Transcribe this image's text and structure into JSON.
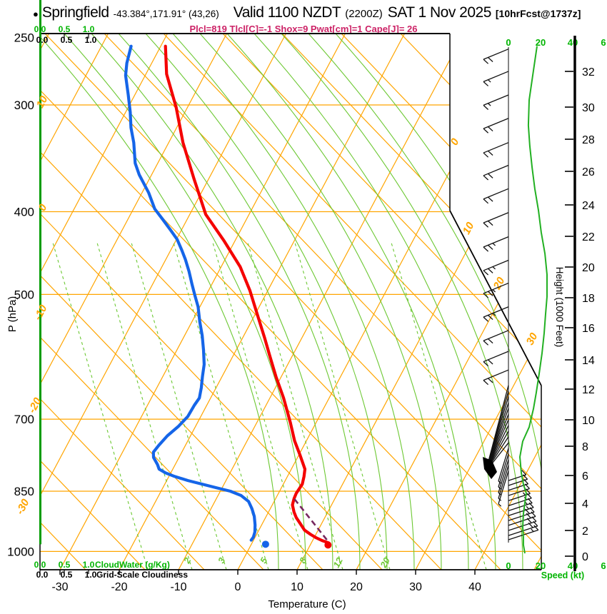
{
  "header": {
    "bullet": "●",
    "station": "Springfield",
    "coords": "-43.384°,171.91° (43,26)",
    "valid_main": "Valid 1100 NZDT",
    "valid_z": "(2200Z)",
    "valid_date": "SAT 1 Nov 2025",
    "forecast_tag": "[10hrFcst@1737z]",
    "indices": "Plcl=819 Tlcl[C]=-1 Shox=9 Pwat[cm]=1 Cape[J]= 26"
  },
  "axes": {
    "pressure_axis_title": "P (hPa)",
    "pressure_ticks": [
      "250",
      "300",
      "400",
      "500",
      "700",
      "850",
      "1000"
    ],
    "temp_axis_title": "Temperature (C)",
    "temp_ticks": [
      "-30",
      "-20",
      "-10",
      "0",
      "10",
      "20",
      "30",
      "40"
    ],
    "height_axis_title": "Height (1000 Feet)",
    "height_ticks": [
      "0",
      "2",
      "4",
      "6",
      "8",
      "10",
      "12",
      "14",
      "16",
      "18",
      "20",
      "22",
      "24",
      "26",
      "28",
      "30",
      "32"
    ],
    "speed_axis_title": "Speed (kt)",
    "speed_ticks": [
      "0",
      "20",
      "40",
      "6"
    ],
    "cloudwater_axis_title": "CloudWater (g/Kg)",
    "cloudwater_ticks": [
      "0.0",
      "0.5",
      "1.0"
    ],
    "cloudiness_axis_title": "Grid-Scale Cloudiness",
    "cloudiness_ticks": [
      "0.0",
      "0.5",
      "1.0"
    ],
    "isotherm_labels_left": [
      "10",
      "0",
      "-10",
      "-20",
      "-30"
    ],
    "isotherm_labels_right": [
      "0",
      "10",
      "20",
      "30"
    ],
    "mixing_ratio_labels": [
      "2",
      "3",
      "5",
      "8",
      "12",
      "20"
    ]
  },
  "chart_data": {
    "type": "line",
    "subtype": "skewt-log-p-sounding",
    "title": "Springfield sounding, valid 1100 NZDT SAT 1 Nov 2025",
    "pressure_range_hpa": [
      1050,
      250
    ],
    "temp_axis_range_c": [
      -30,
      40
    ],
    "height_axis_range_kft": [
      0,
      32
    ],
    "speed_axis_range_kt": [
      0,
      60
    ],
    "temperature_profile_p_t": [
      [
        256,
        -59.2
      ],
      [
        276,
        -56.5
      ],
      [
        302,
        -51.9
      ],
      [
        332,
        -47.6
      ],
      [
        366,
        -42.5
      ],
      [
        403,
        -37.3
      ],
      [
        433,
        -31.8
      ],
      [
        464,
        -26.8
      ],
      [
        495,
        -23.0
      ],
      [
        527,
        -19.7
      ],
      [
        562,
        -16.3
      ],
      [
        589,
        -13.9
      ],
      [
        624,
        -10.9
      ],
      [
        661,
        -7.7
      ],
      [
        707,
        -4.3
      ],
      [
        742,
        -2.0
      ],
      [
        771,
        0.2
      ],
      [
        801,
        2.3
      ],
      [
        817,
        2.8
      ],
      [
        834,
        3.2
      ],
      [
        855,
        3.0
      ],
      [
        867,
        3.1
      ],
      [
        882,
        3.4
      ],
      [
        899,
        4.3
      ],
      [
        913,
        5.2
      ],
      [
        929,
        6.5
      ],
      [
        944,
        7.7
      ],
      [
        955,
        9.1
      ],
      [
        964,
        10.4
      ],
      [
        971,
        11.6
      ],
      [
        977,
        12.9
      ]
    ],
    "dewpoint_profile_p_t": [
      [
        256,
        -65.0
      ],
      [
        268,
        -64.2
      ],
      [
        277,
        -63.3
      ],
      [
        292,
        -61.1
      ],
      [
        306,
        -59.2
      ],
      [
        319,
        -57.7
      ],
      [
        332,
        -55.9
      ],
      [
        351,
        -53.8
      ],
      [
        362,
        -52.1
      ],
      [
        380,
        -48.9
      ],
      [
        397,
        -46.4
      ],
      [
        408,
        -44.2
      ],
      [
        420,
        -41.9
      ],
      [
        431,
        -39.9
      ],
      [
        444,
        -38.1
      ],
      [
        455,
        -36.7
      ],
      [
        470,
        -35.0
      ],
      [
        487,
        -33.3
      ],
      [
        501,
        -31.9
      ],
      [
        517,
        -30.3
      ],
      [
        538,
        -28.7
      ],
      [
        559,
        -27.0
      ],
      [
        581,
        -25.5
      ],
      [
        604,
        -24.1
      ],
      [
        624,
        -23.3
      ],
      [
        643,
        -22.5
      ],
      [
        661,
        -21.9
      ],
      [
        674,
        -22.1
      ],
      [
        695,
        -22.2
      ],
      [
        714,
        -22.9
      ],
      [
        732,
        -23.9
      ],
      [
        751,
        -24.5
      ],
      [
        765,
        -24.8
      ],
      [
        776,
        -24.3
      ],
      [
        791,
        -23.0
      ],
      [
        801,
        -22.3
      ],
      [
        809,
        -20.9
      ],
      [
        817,
        -19.0
      ],
      [
        826,
        -16.4
      ],
      [
        834,
        -13.7
      ],
      [
        842,
        -11.0
      ],
      [
        850,
        -8.3
      ],
      [
        860,
        -6.1
      ],
      [
        874,
        -4.3
      ],
      [
        891,
        -3.1
      ],
      [
        910,
        -2.0
      ],
      [
        931,
        -1.1
      ],
      [
        949,
        -0.5
      ],
      [
        962,
        -0.3
      ],
      [
        970,
        -0.4
      ]
    ],
    "surface_temperature": {
      "p": 977,
      "t": 13.0
    },
    "surface_dewpoint": {
      "p": 977,
      "t": 2.4
    },
    "parcel_path_p_t": [
      [
        868,
        3.2
      ],
      [
        971,
        12.5
      ]
    ],
    "cloud_water_profile": [
      [
        1000,
        0.0
      ],
      [
        255,
        0.0
      ]
    ],
    "wind_speed_profile_p_kt": [
      [
        256,
        17.8
      ],
      [
        277,
        15.1
      ],
      [
        296,
        12.9
      ],
      [
        317,
        12.4
      ],
      [
        335,
        13.3
      ],
      [
        355,
        14.7
      ],
      [
        376,
        16.4
      ],
      [
        399,
        18.7
      ],
      [
        423,
        20.4
      ],
      [
        448,
        22.7
      ],
      [
        474,
        24.0
      ],
      [
        503,
        24.0
      ],
      [
        527,
        23.1
      ],
      [
        555,
        22.2
      ],
      [
        586,
        20.9
      ],
      [
        619,
        19.1
      ],
      [
        652,
        17.3
      ],
      [
        680,
        15.6
      ],
      [
        715,
        12.9
      ],
      [
        743,
        8.9
      ],
      [
        775,
        7.1
      ],
      [
        809,
        8.0
      ],
      [
        834,
        9.3
      ],
      [
        855,
        11.1
      ],
      [
        877,
        10.2
      ],
      [
        904,
        9.3
      ],
      [
        936,
        8.9
      ],
      [
        962,
        9.3
      ],
      [
        982,
        9.3
      ],
      [
        1005,
        10.2
      ]
    ],
    "wind_barbs": [
      {
        "p": 258,
        "type": "L",
        "f": 2
      },
      {
        "p": 274,
        "type": "L",
        "f": 1.5
      },
      {
        "p": 292,
        "type": "L",
        "f": 1.5
      },
      {
        "p": 311,
        "type": "L",
        "f": 2
      },
      {
        "p": 332,
        "type": "L",
        "f": 2
      },
      {
        "p": 353,
        "type": "L",
        "f": 2
      },
      {
        "p": 376,
        "type": "L",
        "f": 2
      },
      {
        "p": 401,
        "type": "L",
        "f": 2
      },
      {
        "p": 428,
        "type": "L",
        "f": 2.5
      },
      {
        "p": 456,
        "type": "L",
        "f": 2.5
      },
      {
        "p": 485,
        "type": "L",
        "f": 2.5
      },
      {
        "p": 517,
        "type": "L",
        "f": 2.5
      },
      {
        "p": 551,
        "type": "L",
        "f": 2
      },
      {
        "p": 583,
        "type": "L",
        "f": 2
      },
      {
        "p": 613,
        "type": "L",
        "f": 2
      },
      {
        "p": 639,
        "type": "F",
        "f": 1
      },
      {
        "p": 649,
        "type": "F",
        "f": 1
      },
      {
        "p": 659,
        "type": "F",
        "f": 1
      },
      {
        "p": 670,
        "type": "F",
        "f": 1
      },
      {
        "p": 680,
        "type": "F",
        "f": 1
      },
      {
        "p": 691,
        "type": "F",
        "f": 1
      },
      {
        "p": 701,
        "type": "F",
        "f": 1
      },
      {
        "p": 712,
        "type": "F",
        "f": 1
      },
      {
        "p": 723,
        "type": "F",
        "f": 1
      },
      {
        "p": 734,
        "type": "F",
        "f": 1
      },
      {
        "p": 746,
        "type": "F",
        "f": 1
      },
      {
        "p": 757,
        "type": "F",
        "f": 1
      },
      {
        "p": 769,
        "type": "F",
        "f": 1
      },
      {
        "p": 781,
        "type": "F",
        "f": 1
      },
      {
        "p": 793,
        "type": "F",
        "f": 1
      },
      {
        "p": 805,
        "type": "F",
        "f": 1
      },
      {
        "p": 826,
        "type": "R",
        "f": 1,
        "len": 26
      },
      {
        "p": 837,
        "type": "R",
        "f": 1,
        "len": 28
      },
      {
        "p": 848,
        "type": "R",
        "f": 1,
        "len": 29
      },
      {
        "p": 860,
        "type": "R",
        "f": 1,
        "len": 31
      },
      {
        "p": 872,
        "type": "R",
        "f": 1.5,
        "len": 32
      },
      {
        "p": 884,
        "type": "R",
        "f": 1.5,
        "len": 34
      },
      {
        "p": 896,
        "type": "R",
        "f": 1.5,
        "len": 35
      },
      {
        "p": 908,
        "type": "R",
        "f": 1.5,
        "len": 37
      },
      {
        "p": 920,
        "type": "R",
        "f": 2,
        "len": 38
      },
      {
        "p": 932,
        "type": "R",
        "f": 2,
        "len": 40
      },
      {
        "p": 945,
        "type": "R",
        "f": 2,
        "len": 41
      },
      {
        "p": 958,
        "type": "R",
        "f": 2,
        "len": 43
      },
      {
        "p": 969,
        "type": "R",
        "f": 1.5,
        "len": 44
      }
    ],
    "isotherm_values_c": [
      -80,
      -70,
      -60,
      -50,
      -40,
      -30,
      -20,
      -10,
      0,
      10,
      20,
      30,
      40,
      50
    ],
    "mixing_ratio_values_gkg": [
      1,
      2,
      3,
      5,
      8,
      12,
      20,
      30
    ],
    "legend_position": "none",
    "grid": true,
    "colors": {
      "temperature": "#f40000",
      "dewpoint": "#1565e8",
      "grid_orange": "#ffa500",
      "grid_green": "#6cc832",
      "speed_curve_green": "#22b022",
      "cloudwater_green": "#009c00",
      "label_green": "#00b400",
      "indices_magenta": "#cc2266",
      "parcel_dash": "#77285f",
      "frame_black": "#000000"
    }
  }
}
